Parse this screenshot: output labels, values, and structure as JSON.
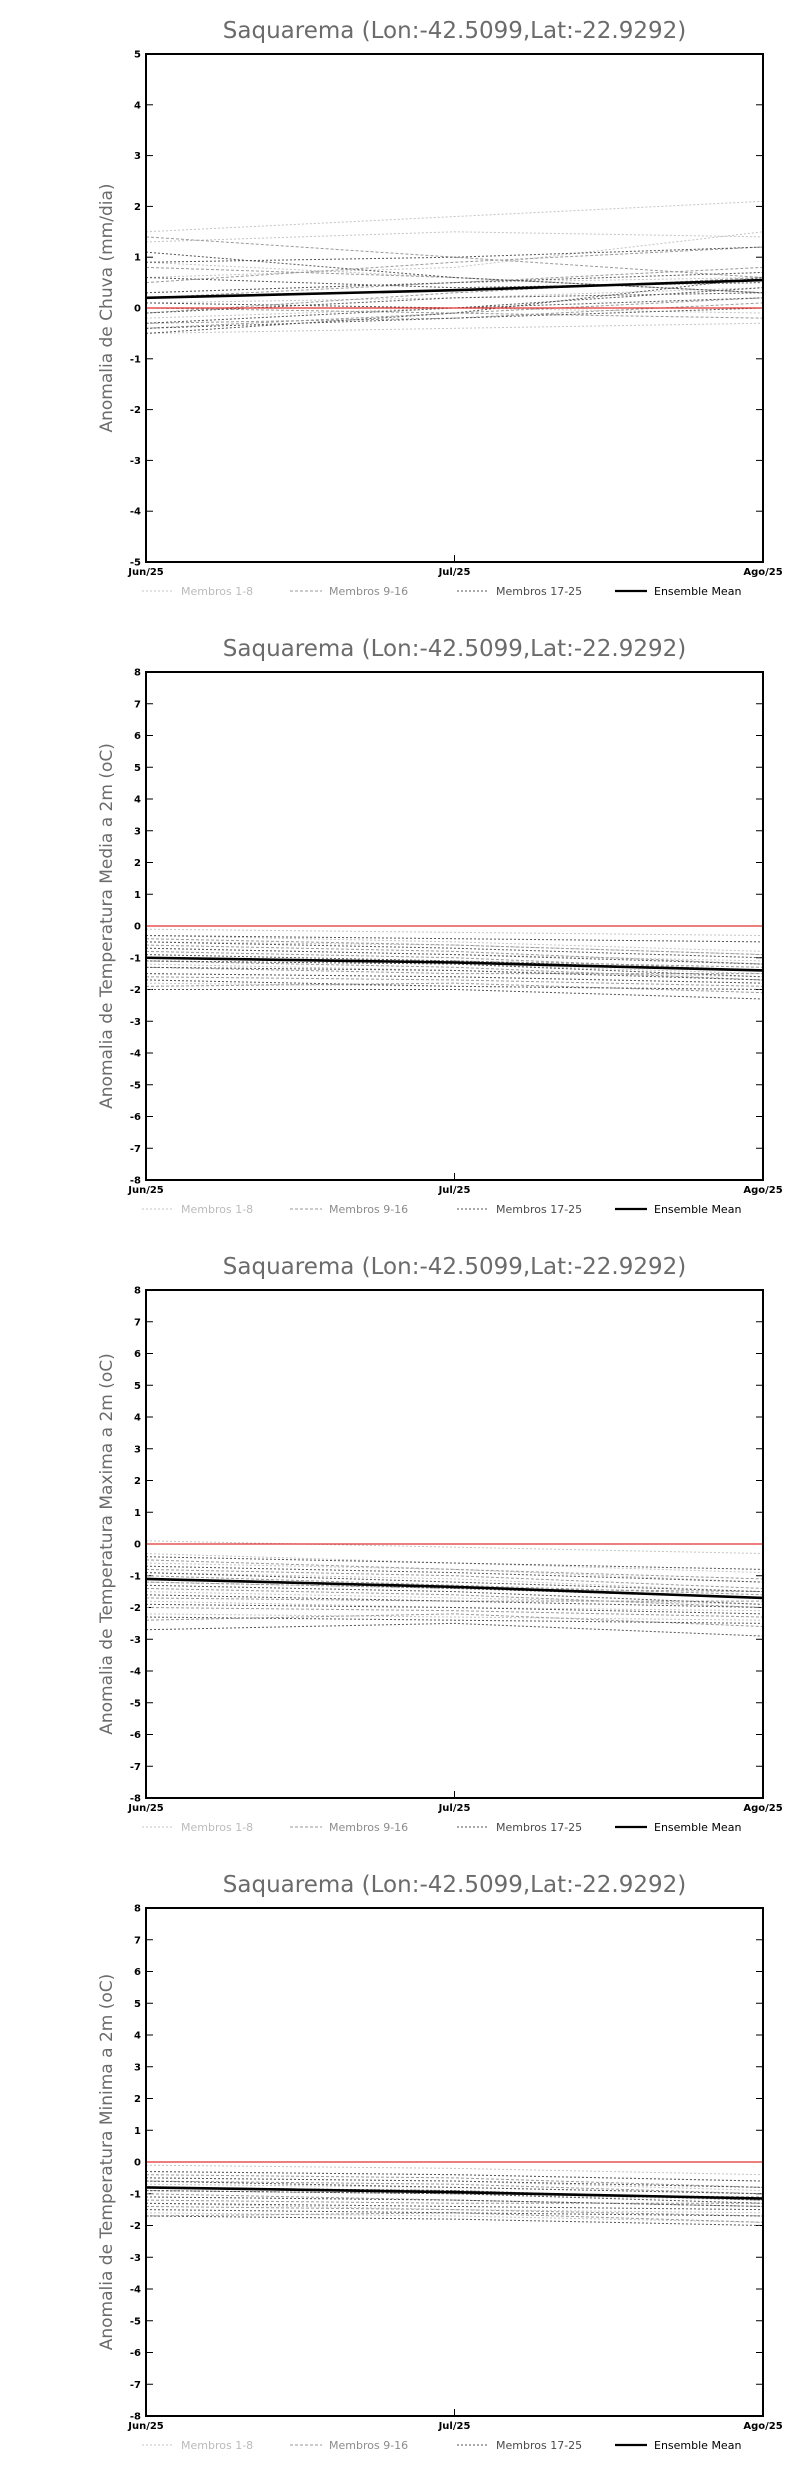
{
  "chart_data": [
    {
      "type": "line",
      "title": "Saquarema (Lon:-42.5099,Lat:-22.9292)",
      "ylabel": "Anomalia de Chuva (mm/dia)",
      "xlabel": "",
      "x": [
        "Jun/25",
        "Jul/25",
        "Ago/25"
      ],
      "ylim": [
        -5,
        5
      ],
      "yticks": [
        -5,
        -4,
        -3,
        -2,
        -1,
        0,
        1,
        2,
        3,
        4,
        5
      ],
      "zero_line_color": "#e03030",
      "legend": [
        "Membros 1-8",
        "Membros 9-16",
        "Membros 17-25",
        "Ensemble Mean"
      ],
      "series": [
        {
          "group": "1-8",
          "values": [
            1.5,
            1.8,
            2.1
          ]
        },
        {
          "group": "1-8",
          "values": [
            1.3,
            1.5,
            1.4
          ]
        },
        {
          "group": "1-8",
          "values": [
            0.9,
            0.6,
            0.3
          ]
        },
        {
          "group": "1-8",
          "values": [
            0.6,
            0.8,
            1.5
          ]
        },
        {
          "group": "1-8",
          "values": [
            0.3,
            0.5,
            0.6
          ]
        },
        {
          "group": "1-8",
          "values": [
            0.1,
            0.2,
            0.4
          ]
        },
        {
          "group": "1-8",
          "values": [
            -0.2,
            0.0,
            -0.1
          ]
        },
        {
          "group": "1-8",
          "values": [
            -0.5,
            -0.4,
            -0.3
          ]
        },
        {
          "group": "9-16",
          "values": [
            1.4,
            1.0,
            0.6
          ]
        },
        {
          "group": "9-16",
          "values": [
            0.8,
            0.6,
            0.3
          ]
        },
        {
          "group": "9-16",
          "values": [
            0.5,
            0.9,
            1.2
          ]
        },
        {
          "group": "9-16",
          "values": [
            0.2,
            0.5,
            0.8
          ]
        },
        {
          "group": "9-16",
          "values": [
            0.0,
            -0.1,
            0.2
          ]
        },
        {
          "group": "9-16",
          "values": [
            -0.1,
            0.3,
            0.6
          ]
        },
        {
          "group": "9-16",
          "values": [
            -0.3,
            -0.2,
            0.1
          ]
        },
        {
          "group": "9-16",
          "values": [
            -0.4,
            -0.1,
            -0.2
          ]
        },
        {
          "group": "17-25",
          "values": [
            1.1,
            0.6,
            0.3
          ]
        },
        {
          "group": "17-25",
          "values": [
            0.9,
            1.0,
            1.2
          ]
        },
        {
          "group": "17-25",
          "values": [
            0.6,
            0.4,
            0.5
          ]
        },
        {
          "group": "17-25",
          "values": [
            0.3,
            0.5,
            0.7
          ]
        },
        {
          "group": "17-25",
          "values": [
            0.1,
            0.0,
            0.4
          ]
        },
        {
          "group": "17-25",
          "values": [
            -0.1,
            0.2,
            0.3
          ]
        },
        {
          "group": "17-25",
          "values": [
            -0.3,
            0.0,
            0.2
          ]
        },
        {
          "group": "17-25",
          "values": [
            -0.4,
            -0.2,
            0.0
          ]
        },
        {
          "group": "17-25",
          "values": [
            -0.5,
            -0.1,
            0.6
          ]
        },
        {
          "group": "mean",
          "values": [
            0.2,
            0.35,
            0.55
          ]
        }
      ]
    },
    {
      "type": "line",
      "title": "Saquarema (Lon:-42.5099,Lat:-22.9292)",
      "ylabel": "Anomalia de Temperatura Media a 2m (oC)",
      "xlabel": "",
      "x": [
        "Jun/25",
        "Jul/25",
        "Ago/25"
      ],
      "ylim": [
        -8,
        8
      ],
      "yticks": [
        -8,
        -7,
        -6,
        -5,
        -4,
        -3,
        -2,
        -1,
        0,
        1,
        2,
        3,
        4,
        5,
        6,
        7,
        8
      ],
      "zero_line_color": "#e03030",
      "legend": [
        "Membros 1-8",
        "Membros 9-16",
        "Membros 17-25",
        "Ensemble Mean"
      ],
      "series": [
        {
          "group": "1-8",
          "values": [
            -0.1,
            -0.2,
            -0.3
          ]
        },
        {
          "group": "1-8",
          "values": [
            -0.3,
            -0.5,
            -0.8
          ]
        },
        {
          "group": "1-8",
          "values": [
            -0.5,
            -0.6,
            -0.9
          ]
        },
        {
          "group": "1-8",
          "values": [
            -0.7,
            -0.9,
            -1.1
          ]
        },
        {
          "group": "1-8",
          "values": [
            -1.0,
            -1.2,
            -1.5
          ]
        },
        {
          "group": "1-8",
          "values": [
            -1.2,
            -1.4,
            -1.6
          ]
        },
        {
          "group": "1-8",
          "values": [
            -1.5,
            -1.6,
            -1.8
          ]
        },
        {
          "group": "1-8",
          "values": [
            -1.8,
            -1.9,
            -2.0
          ]
        },
        {
          "group": "9-16",
          "values": [
            -0.4,
            -0.6,
            -0.9
          ]
        },
        {
          "group": "9-16",
          "values": [
            -0.6,
            -0.8,
            -1.2
          ]
        },
        {
          "group": "9-16",
          "values": [
            -0.8,
            -1.0,
            -1.4
          ]
        },
        {
          "group": "9-16",
          "values": [
            -1.0,
            -1.1,
            -1.3
          ]
        },
        {
          "group": "9-16",
          "values": [
            -1.1,
            -1.3,
            -1.7
          ]
        },
        {
          "group": "9-16",
          "values": [
            -1.3,
            -1.5,
            -1.5
          ]
        },
        {
          "group": "9-16",
          "values": [
            -1.6,
            -1.7,
            -1.9
          ]
        },
        {
          "group": "9-16",
          "values": [
            -1.9,
            -1.8,
            -2.1
          ]
        },
        {
          "group": "17-25",
          "values": [
            -0.3,
            -0.4,
            -0.5
          ]
        },
        {
          "group": "17-25",
          "values": [
            -0.5,
            -0.7,
            -1.0
          ]
        },
        {
          "group": "17-25",
          "values": [
            -0.7,
            -0.9,
            -1.2
          ]
        },
        {
          "group": "17-25",
          "values": [
            -0.9,
            -1.1,
            -1.4
          ]
        },
        {
          "group": "17-25",
          "values": [
            -1.1,
            -1.2,
            -1.6
          ]
        },
        {
          "group": "17-25",
          "values": [
            -1.3,
            -1.4,
            -1.7
          ]
        },
        {
          "group": "17-25",
          "values": [
            -1.5,
            -1.6,
            -1.8
          ]
        },
        {
          "group": "17-25",
          "values": [
            -1.7,
            -1.9,
            -2.0
          ]
        },
        {
          "group": "17-25",
          "values": [
            -2.0,
            -2.0,
            -2.3
          ]
        },
        {
          "group": "mean",
          "values": [
            -1.0,
            -1.15,
            -1.4
          ]
        }
      ]
    },
    {
      "type": "line",
      "title": "Saquarema (Lon:-42.5099,Lat:-22.9292)",
      "ylabel": "Anomalia de Temperatura Maxima a 2m (oC)",
      "xlabel": "",
      "x": [
        "Jun/25",
        "Jul/25",
        "Ago/25"
      ],
      "ylim": [
        -8,
        8
      ],
      "yticks": [
        -8,
        -7,
        -6,
        -5,
        -4,
        -3,
        -2,
        -1,
        0,
        1,
        2,
        3,
        4,
        5,
        6,
        7,
        8
      ],
      "zero_line_color": "#e03030",
      "legend": [
        "Membros 1-8",
        "Membros 9-16",
        "Membros 17-25",
        "Ensemble Mean"
      ],
      "series": [
        {
          "group": "1-8",
          "values": [
            0.1,
            -0.1,
            -0.3
          ]
        },
        {
          "group": "1-8",
          "values": [
            -0.3,
            -0.6,
            -0.9
          ]
        },
        {
          "group": "1-8",
          "values": [
            -0.6,
            -0.8,
            -1.2
          ]
        },
        {
          "group": "1-8",
          "values": [
            -0.9,
            -1.1,
            -1.5
          ]
        },
        {
          "group": "1-8",
          "values": [
            -1.2,
            -1.4,
            -1.7
          ]
        },
        {
          "group": "1-8",
          "values": [
            -1.5,
            -1.7,
            -1.9
          ]
        },
        {
          "group": "1-8",
          "values": [
            -1.8,
            -2.0,
            -2.1
          ]
        },
        {
          "group": "1-8",
          "values": [
            -2.2,
            -2.3,
            -2.4
          ]
        },
        {
          "group": "9-16",
          "values": [
            -0.5,
            -0.8,
            -1.1
          ]
        },
        {
          "group": "9-16",
          "values": [
            -0.8,
            -1.0,
            -1.4
          ]
        },
        {
          "group": "9-16",
          "values": [
            -1.0,
            -1.3,
            -1.6
          ]
        },
        {
          "group": "9-16",
          "values": [
            -1.2,
            -1.4,
            -1.5
          ]
        },
        {
          "group": "9-16",
          "values": [
            -1.4,
            -1.6,
            -2.0
          ]
        },
        {
          "group": "9-16",
          "values": [
            -1.7,
            -1.8,
            -1.8
          ]
        },
        {
          "group": "9-16",
          "values": [
            -2.0,
            -2.1,
            -2.3
          ]
        },
        {
          "group": "9-16",
          "values": [
            -2.4,
            -2.2,
            -2.6
          ]
        },
        {
          "group": "17-25",
          "values": [
            -0.4,
            -0.6,
            -0.8
          ]
        },
        {
          "group": "17-25",
          "values": [
            -0.7,
            -0.9,
            -1.2
          ]
        },
        {
          "group": "17-25",
          "values": [
            -0.9,
            -1.2,
            -1.5
          ]
        },
        {
          "group": "17-25",
          "values": [
            -1.1,
            -1.4,
            -1.7
          ]
        },
        {
          "group": "17-25",
          "values": [
            -1.3,
            -1.5,
            -1.9
          ]
        },
        {
          "group": "17-25",
          "values": [
            -1.6,
            -1.8,
            -2.0
          ]
        },
        {
          "group": "17-25",
          "values": [
            -1.9,
            -2.0,
            -2.2
          ]
        },
        {
          "group": "17-25",
          "values": [
            -2.3,
            -2.4,
            -2.5
          ]
        },
        {
          "group": "17-25",
          "values": [
            -2.7,
            -2.5,
            -2.9
          ]
        },
        {
          "group": "mean",
          "values": [
            -1.1,
            -1.35,
            -1.7
          ]
        }
      ]
    },
    {
      "type": "line",
      "title": "Saquarema (Lon:-42.5099,Lat:-22.9292)",
      "ylabel": "Anomalia de Temperatura Minima a 2m (oC)",
      "xlabel": "",
      "x": [
        "Jun/25",
        "Jul/25",
        "Ago/25"
      ],
      "ylim": [
        -8,
        8
      ],
      "yticks": [
        -8,
        -7,
        -6,
        -5,
        -4,
        -3,
        -2,
        -1,
        0,
        1,
        2,
        3,
        4,
        5,
        6,
        7,
        8
      ],
      "zero_line_color": "#e03030",
      "legend": [
        "Membros 1-8",
        "Membros 9-16",
        "Membros 17-25",
        "Ensemble Mean"
      ],
      "series": [
        {
          "group": "1-8",
          "values": [
            -0.1,
            -0.2,
            -0.4
          ]
        },
        {
          "group": "1-8",
          "values": [
            -0.3,
            -0.4,
            -0.6
          ]
        },
        {
          "group": "1-8",
          "values": [
            -0.5,
            -0.6,
            -0.9
          ]
        },
        {
          "group": "1-8",
          "values": [
            -0.7,
            -0.8,
            -1.0
          ]
        },
        {
          "group": "1-8",
          "values": [
            -0.9,
            -1.0,
            -1.2
          ]
        },
        {
          "group": "1-8",
          "values": [
            -1.1,
            -1.2,
            -1.4
          ]
        },
        {
          "group": "1-8",
          "values": [
            -1.3,
            -1.5,
            -1.6
          ]
        },
        {
          "group": "1-8",
          "values": [
            -1.6,
            -1.7,
            -1.9
          ]
        },
        {
          "group": "9-16",
          "values": [
            -0.4,
            -0.5,
            -0.8
          ]
        },
        {
          "group": "9-16",
          "values": [
            -0.6,
            -0.7,
            -1.0
          ]
        },
        {
          "group": "9-16",
          "values": [
            -0.8,
            -0.9,
            -1.2
          ]
        },
        {
          "group": "9-16",
          "values": [
            -0.9,
            -1.0,
            -1.1
          ]
        },
        {
          "group": "9-16",
          "values": [
            -1.0,
            -1.2,
            -1.4
          ]
        },
        {
          "group": "9-16",
          "values": [
            -1.2,
            -1.3,
            -1.3
          ]
        },
        {
          "group": "9-16",
          "values": [
            -1.4,
            -1.5,
            -1.7
          ]
        },
        {
          "group": "9-16",
          "values": [
            -1.7,
            -1.6,
            -1.9
          ]
        },
        {
          "group": "17-25",
          "values": [
            -0.3,
            -0.4,
            -0.6
          ]
        },
        {
          "group": "17-25",
          "values": [
            -0.5,
            -0.6,
            -0.8
          ]
        },
        {
          "group": "17-25",
          "values": [
            -0.6,
            -0.8,
            -1.0
          ]
        },
        {
          "group": "17-25",
          "values": [
            -0.8,
            -0.9,
            -1.2
          ]
        },
        {
          "group": "17-25",
          "values": [
            -0.9,
            -1.0,
            -1.3
          ]
        },
        {
          "group": "17-25",
          "values": [
            -1.1,
            -1.2,
            -1.4
          ]
        },
        {
          "group": "17-25",
          "values": [
            -1.3,
            -1.4,
            -1.5
          ]
        },
        {
          "group": "17-25",
          "values": [
            -1.5,
            -1.6,
            -1.7
          ]
        },
        {
          "group": "17-25",
          "values": [
            -1.7,
            -1.8,
            -2.0
          ]
        },
        {
          "group": "mean",
          "values": [
            -0.8,
            -0.95,
            -1.15
          ]
        }
      ]
    }
  ]
}
